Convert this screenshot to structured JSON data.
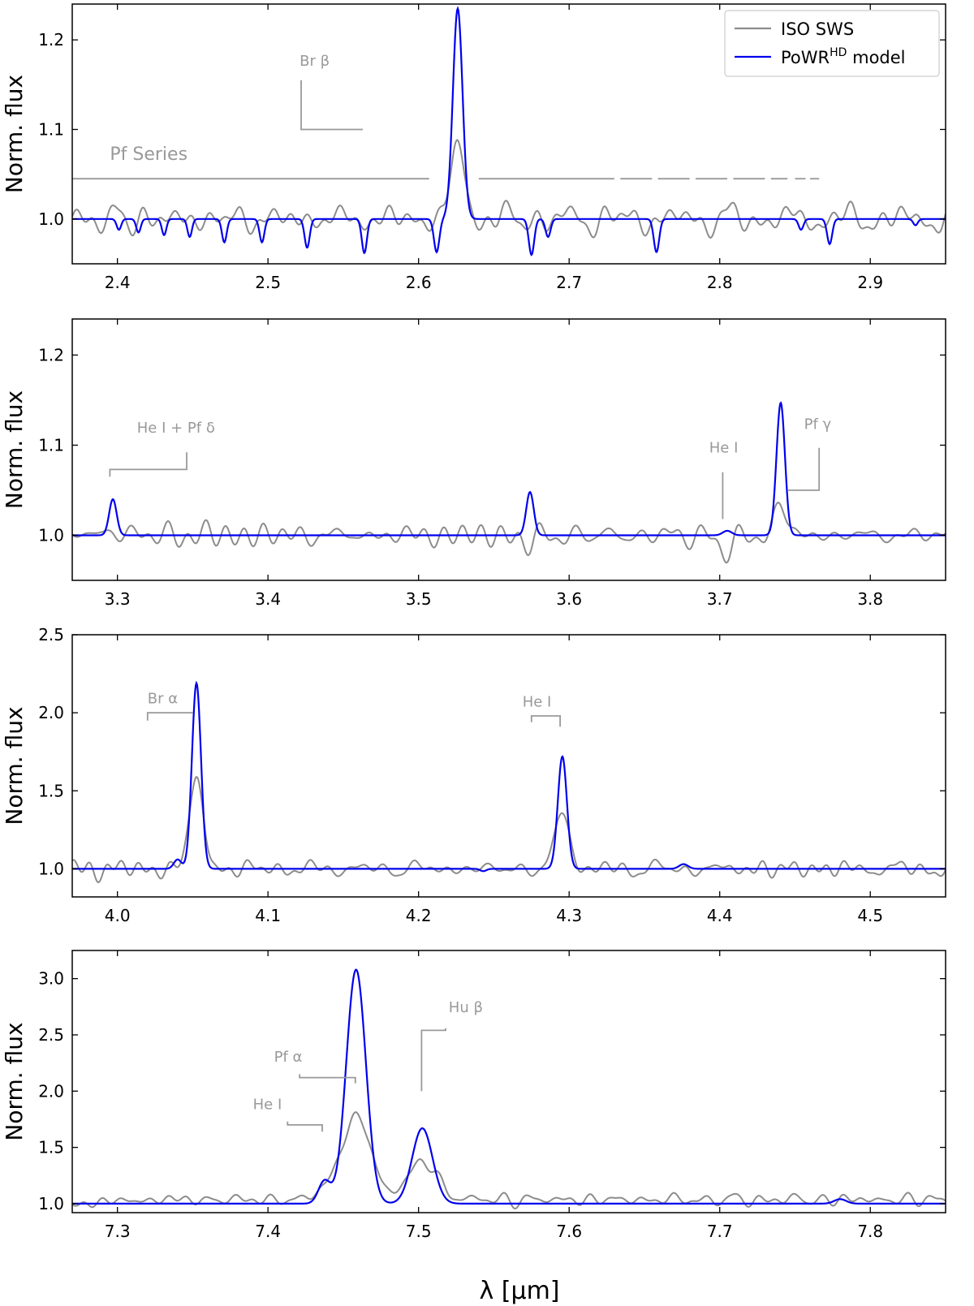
{
  "chart_data": {
    "type": "line",
    "xlabel": "λ [μm]",
    "colors": {
      "observed": "#8c8c8c",
      "model": "#0000ee",
      "annotation": "#999999"
    },
    "legend": {
      "position": "top-right",
      "entries": [
        {
          "label": "ISO SWS",
          "series": "obs"
        },
        {
          "label": "PoWR",
          "sup": "HD",
          "suffix": " model",
          "series": "model"
        }
      ]
    },
    "panels": [
      {
        "ylabel": "Norm. flux",
        "xlim": [
          2.37,
          2.95
        ],
        "ylim": [
          0.95,
          1.24
        ],
        "xticks": [
          "2.4",
          "2.5",
          "2.6",
          "2.7",
          "2.8",
          "2.9"
        ],
        "yticks": [
          "1.0",
          "1.1",
          "1.2"
        ],
        "continuum": 1.0,
        "lines": [
          {
            "x": 2.626,
            "w": 0.0032,
            "model": 0.235,
            "obs": 0.078
          },
          {
            "x": 2.401,
            "w": 0.0015,
            "model": -0.012,
            "obs": 0
          },
          {
            "x": 2.414,
            "w": 0.0015,
            "model": -0.015,
            "obs": 0
          },
          {
            "x": 2.431,
            "w": 0.0015,
            "model": -0.018,
            "obs": 0
          },
          {
            "x": 2.448,
            "w": 0.0015,
            "model": -0.02,
            "obs": 0
          },
          {
            "x": 2.471,
            "w": 0.0016,
            "model": -0.026,
            "obs": 0
          },
          {
            "x": 2.496,
            "w": 0.0016,
            "model": -0.026,
            "obs": 0
          },
          {
            "x": 2.526,
            "w": 0.0017,
            "model": -0.032,
            "obs": 0
          },
          {
            "x": 2.564,
            "w": 0.0017,
            "model": -0.038,
            "obs": 0
          },
          {
            "x": 2.612,
            "w": 0.0018,
            "model": -0.037,
            "obs": 0
          },
          {
            "x": 2.675,
            "w": 0.0018,
            "model": -0.04,
            "obs": 0
          },
          {
            "x": 2.686,
            "w": 0.0017,
            "model": -0.02,
            "obs": 0
          },
          {
            "x": 2.758,
            "w": 0.0018,
            "model": -0.037,
            "obs": 0
          },
          {
            "x": 2.854,
            "w": 0.0016,
            "model": -0.012,
            "obs": 0
          },
          {
            "x": 2.873,
            "w": 0.0017,
            "model": -0.028,
            "obs": 0
          },
          {
            "x": 2.93,
            "w": 0.0015,
            "model": -0.007,
            "obs": 0
          }
        ],
        "noise": {
          "amp": 0.012,
          "seed": 3
        },
        "annotations": [
          {
            "text": "Pf Series",
            "tx": 2.395,
            "ty": 1.066,
            "size": "large"
          },
          {
            "text": "Br β",
            "tx": 2.521,
            "ty": 1.171,
            "path": [
              [
                2.522,
                1.155
              ],
              [
                2.522,
                1.1
              ],
              [
                2.563,
                1.1
              ]
            ]
          }
        ],
        "series_markers": {
          "y": 1.045,
          "segments": [
            [
              2.37,
              2.607
            ],
            [
              2.64,
              2.73
            ],
            [
              2.734,
              2.755
            ],
            [
              2.759,
              2.78
            ],
            [
              2.784,
              2.805
            ],
            [
              2.809,
              2.83
            ],
            [
              2.834,
              2.845
            ],
            [
              2.85,
              2.857
            ],
            [
              2.86,
              2.866
            ]
          ]
        }
      },
      {
        "ylabel": "Norm. flux",
        "xlim": [
          3.27,
          3.85
        ],
        "ylim": [
          0.95,
          1.24
        ],
        "xticks": [
          "3.3",
          "3.4",
          "3.5",
          "3.6",
          "3.7",
          "3.8"
        ],
        "yticks": [
          "1.0",
          "1.1",
          "1.2"
        ],
        "continuum": 1.0,
        "lines": [
          {
            "x": 3.297,
            "w": 0.0025,
            "model": 0.04,
            "obs": 0.008
          },
          {
            "x": 3.574,
            "w": 0.0025,
            "model": 0.048,
            "obs": -0.012
          },
          {
            "x": 3.7405,
            "w": 0.0028,
            "model": 0.147,
            "obs": 0.032
          },
          {
            "x": 3.705,
            "w": 0.003,
            "model": 0.005,
            "obs": -0.02
          }
        ],
        "noise": {
          "amp": 0.01,
          "seed": 11
        },
        "annotations": [
          {
            "text": "He I + Pf δ",
            "tx": 3.313,
            "ty": 1.114,
            "path": [
              [
                3.295,
                1.065
              ],
              [
                3.295,
                1.073
              ],
              [
                3.346,
                1.073
              ],
              [
                3.346,
                1.092
              ]
            ]
          },
          {
            "text": "He I",
            "tx": 3.693,
            "ty": 1.092,
            "path": [
              [
                3.702,
                1.07
              ],
              [
                3.702,
                1.018
              ]
            ]
          },
          {
            "text": "Pf γ",
            "tx": 3.756,
            "ty": 1.118,
            "path": [
              [
                3.745,
                1.05
              ],
              [
                3.766,
                1.05
              ],
              [
                3.766,
                1.097
              ]
            ]
          }
        ]
      },
      {
        "ylabel": "Norm. flux",
        "xlim": [
          3.97,
          4.55
        ],
        "ylim": [
          0.82,
          2.5
        ],
        "xticks": [
          "4.0",
          "4.1",
          "4.2",
          "4.3",
          "4.4",
          "4.5"
        ],
        "yticks": [
          "1.0",
          "1.5",
          "2.0",
          "2.5"
        ],
        "continuum": 1.0,
        "lines": [
          {
            "x": 4.0525,
            "w": 0.003,
            "model": 1.19,
            "obs": 0.59
          },
          {
            "x": 4.04,
            "w": 0.0025,
            "model": 0.06,
            "obs": 0
          },
          {
            "x": 4.2955,
            "w": 0.003,
            "model": 0.72,
            "obs": 0.38
          },
          {
            "x": 4.376,
            "w": 0.003,
            "model": 0.03,
            "obs": 0
          },
          {
            "x": 4.243,
            "w": 0.002,
            "model": -0.015,
            "obs": 0
          }
        ],
        "noise": {
          "amp": 0.03,
          "seed": 29
        },
        "annotations": [
          {
            "text": "Br α",
            "tx": 4.02,
            "ty": 2.06,
            "path": [
              [
                4.02,
                1.95
              ],
              [
                4.02,
                2.0
              ],
              [
                4.05,
                2.0
              ]
            ]
          },
          {
            "text": "He I",
            "tx": 4.269,
            "ty": 2.04,
            "path": [
              [
                4.275,
                1.94
              ],
              [
                4.275,
                1.98
              ],
              [
                4.294,
                1.98
              ],
              [
                4.294,
                1.91
              ]
            ]
          }
        ]
      },
      {
        "ylabel": "Norm. flux",
        "xlim": [
          7.27,
          7.85
        ],
        "ylim": [
          0.92,
          3.25
        ],
        "xticks": [
          "7.3",
          "7.4",
          "7.5",
          "7.6",
          "7.7",
          "7.8"
        ],
        "yticks": [
          "1.0",
          "1.5",
          "2.0",
          "2.5",
          "3.0"
        ],
        "continuum": 1.0,
        "lines": [
          {
            "x": 7.4585,
            "w": 0.0065,
            "model": 2.08,
            "obs": 0.74
          },
          {
            "x": 7.5025,
            "w": 0.0068,
            "model": 0.67,
            "obs": 0.33
          },
          {
            "x": 7.4375,
            "w": 0.004,
            "model": 0.2,
            "obs": 0.07
          },
          {
            "x": 7.78,
            "w": 0.004,
            "model": 0.04,
            "obs": 0
          }
        ],
        "noise": {
          "amp": 0.035,
          "seed": 57,
          "offset": 0.035
        },
        "annotations": [
          {
            "text": "Pf α",
            "tx": 7.404,
            "ty": 2.26,
            "path": [
              [
                7.421,
                2.15
              ],
              [
                7.421,
                2.12
              ],
              [
                7.458,
                2.12
              ],
              [
                7.458,
                2.07
              ]
            ]
          },
          {
            "text": "Hu β",
            "tx": 7.52,
            "ty": 2.7,
            "path": [
              [
                7.502,
                2.0
              ],
              [
                7.502,
                2.54
              ],
              [
                7.518,
                2.54
              ],
              [
                7.518,
                2.56
              ]
            ]
          },
          {
            "text": "He I",
            "tx": 7.39,
            "ty": 1.84,
            "path": [
              [
                7.413,
                1.73
              ],
              [
                7.413,
                1.7
              ],
              [
                7.436,
                1.7
              ],
              [
                7.436,
                1.64
              ]
            ]
          }
        ]
      }
    ]
  }
}
